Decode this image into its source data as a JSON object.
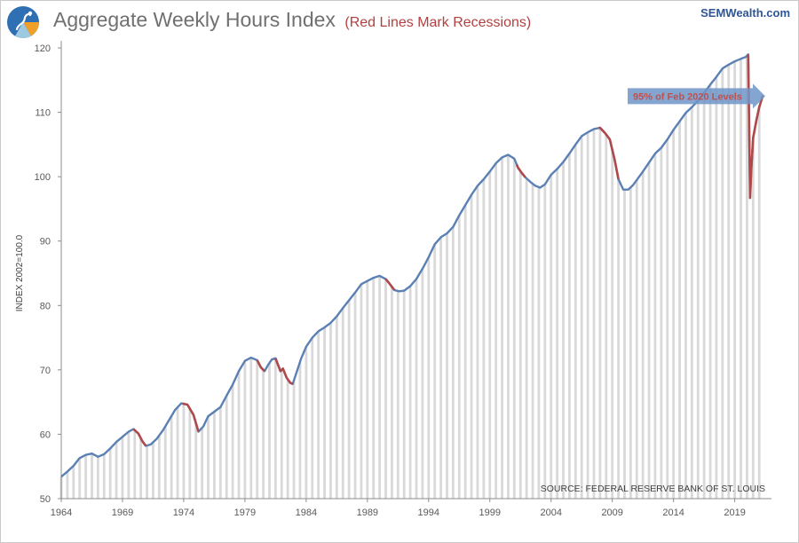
{
  "header": {
    "title": "Aggregate Weekly Hours Index",
    "subtitle": "(Red Lines Mark Recessions)",
    "brand": "SEMWealth.com"
  },
  "colors": {
    "line": "#5b80b3",
    "recession": "#b04a4a",
    "bars": "#d9d9d9",
    "arrow": "#6f95c8",
    "annotation_text": "#c0504d"
  },
  "chart_data": {
    "type": "line",
    "title": "Aggregate Weekly Hours Index",
    "subtitle": "(Red Lines Mark Recessions)",
    "ylabel": "INDEX 2002=100.0",
    "xlabel": "",
    "xlim": [
      1964,
      2022
    ],
    "ylim": [
      50,
      120
    ],
    "yticks": [
      50,
      60,
      70,
      80,
      90,
      100,
      110,
      120
    ],
    "xticks": [
      1964,
      1969,
      1974,
      1979,
      1984,
      1989,
      1994,
      1999,
      2004,
      2009,
      2014,
      2019
    ],
    "grid": false,
    "source": "SOURCE:  FEDERAL RESERVE BANK OF ST. LOUIS",
    "annotation": {
      "text": "95% of Feb 2020 Levels",
      "y": 112.5
    },
    "series": [
      {
        "x": [
          1964.0,
          1964.5,
          1965.0,
          1965.5,
          1966.0,
          1966.5,
          1967.0,
          1967.5,
          1968.0,
          1968.5,
          1969.0,
          1969.5,
          1969.9,
          1970.3,
          1970.6,
          1970.9,
          1971.3,
          1971.8,
          1972.3,
          1972.8,
          1973.3,
          1973.8,
          1974.3,
          1974.8,
          1975.2,
          1975.6,
          1976.0,
          1976.5,
          1977.0,
          1977.5,
          1978.0,
          1978.5,
          1979.0,
          1979.5,
          1980.0,
          1980.3,
          1980.6,
          1980.9,
          1981.2,
          1981.5,
          1981.7,
          1981.9,
          1982.1,
          1982.4,
          1982.7,
          1982.9,
          1983.2,
          1983.6,
          1984.0,
          1984.5,
          1985.0,
          1985.5,
          1986.0,
          1986.5,
          1987.0,
          1987.5,
          1988.0,
          1988.5,
          1989.0,
          1989.5,
          1990.0,
          1990.5,
          1990.8,
          1991.2,
          1991.6,
          1992.0,
          1992.5,
          1993.0,
          1993.5,
          1994.0,
          1994.5,
          1995.0,
          1995.5,
          1996.0,
          1996.5,
          1997.0,
          1997.5,
          1998.0,
          1998.5,
          1999.0,
          1999.5,
          2000.0,
          2000.5,
          2001.0,
          2001.3,
          2001.6,
          2001.9,
          2002.3,
          2002.7,
          2003.1,
          2003.5,
          2004.0,
          2004.5,
          2005.0,
          2005.5,
          2006.0,
          2006.5,
          2007.0,
          2007.5,
          2008.0,
          2008.4,
          2008.8,
          2009.2,
          2009.5,
          2009.9,
          2010.3,
          2010.7,
          2011.0,
          2011.5,
          2012.0,
          2012.5,
          2013.0,
          2013.5,
          2014.0,
          2014.5,
          2015.0,
          2015.5,
          2016.0,
          2016.5,
          2017.0,
          2017.5,
          2018.0,
          2018.5,
          2019.0,
          2019.5,
          2019.9,
          2020.1,
          2020.25,
          2020.35,
          2020.5,
          2020.75,
          2021.0,
          2021.3
        ],
        "y": [
          53.4,
          54.2,
          55.1,
          56.3,
          56.8,
          57.0,
          56.5,
          56.9,
          57.8,
          58.8,
          59.6,
          60.4,
          60.8,
          60.1,
          59.0,
          58.2,
          58.4,
          59.3,
          60.6,
          62.2,
          63.8,
          64.8,
          64.6,
          63.0,
          60.4,
          61.2,
          62.8,
          63.5,
          64.2,
          66.0,
          67.7,
          69.8,
          71.4,
          71.9,
          71.5,
          70.4,
          69.8,
          70.8,
          71.6,
          71.8,
          70.8,
          69.8,
          70.2,
          68.8,
          68.0,
          67.8,
          69.5,
          71.8,
          73.6,
          75.0,
          76.0,
          76.6,
          77.3,
          78.3,
          79.6,
          80.8,
          82.0,
          83.3,
          83.8,
          84.3,
          84.6,
          84.1,
          83.4,
          82.4,
          82.2,
          82.3,
          83.0,
          84.1,
          85.7,
          87.5,
          89.5,
          90.6,
          91.2,
          92.2,
          94.0,
          95.6,
          97.2,
          98.6,
          99.6,
          100.8,
          102.1,
          103.0,
          103.4,
          102.8,
          101.4,
          100.6,
          99.9,
          99.2,
          98.6,
          98.3,
          98.8,
          100.3,
          101.2,
          102.3,
          103.6,
          105.0,
          106.3,
          106.9,
          107.4,
          107.6,
          106.8,
          105.8,
          102.6,
          99.6,
          98.0,
          98.0,
          98.7,
          99.5,
          100.8,
          102.2,
          103.6,
          104.5,
          105.8,
          107.3,
          108.6,
          109.9,
          110.8,
          111.8,
          113.0,
          114.3,
          115.5,
          116.8,
          117.4,
          117.9,
          118.3,
          118.6,
          119.0,
          96.7,
          101.0,
          106.0,
          108.6,
          110.8,
          112.6
        ]
      }
    ],
    "recessions": [
      [
        1969.9,
        1970.9
      ],
      [
        1973.9,
        1975.2
      ],
      [
        1980.0,
        1980.6
      ],
      [
        1981.5,
        1982.9
      ],
      [
        1990.5,
        1991.2
      ],
      [
        2001.2,
        2001.9
      ],
      [
        2007.9,
        2009.5
      ],
      [
        2020.1,
        2021.3
      ]
    ]
  }
}
